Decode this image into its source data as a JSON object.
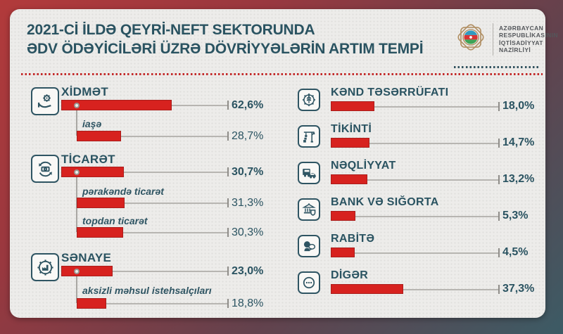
{
  "header": {
    "title_line1": "2021-Cİ İLDƏ QEYRİ-NEFT SEKTORUNDA",
    "title_line2": "ƏDV ÖDƏYİCİLƏRİ ÜZRƏ DÖVRİYYƏLƏRİN ARTIM TEMPİ",
    "ministry": {
      "line1": "AZƏRBAYCAN",
      "line2": "RESPUBLİKASININ",
      "line3": "İQTİSADİYYAT",
      "line4": "NAZİRLİYİ"
    }
  },
  "colors": {
    "bar_red": "#d7221f",
    "teal_text": "#2a5361",
    "frame_red": "#b23a3b",
    "frame_teal": "#3c5b65",
    "emblem_gold": "#b19065",
    "track_gray": "#b7b5b1",
    "card_bg": "#edecea"
  },
  "chart_data": {
    "type": "bar",
    "title": "2021-ci ildə qeyri-neft sektorunda ƏDV ödəyiciləri üzrə dövriyyələrin artım tempi",
    "unit": "%",
    "value_format": "comma-decimal",
    "orientation": "horizontal",
    "left_column": [
      {
        "label": "XİDMƏT",
        "icon": "service-hand-gear-icon",
        "value": 62.6,
        "display": "62,6%",
        "children": [
          {
            "label": "iaşə",
            "value": 28.7,
            "display": "28,7%"
          }
        ]
      },
      {
        "label": "TİCARƏT",
        "icon": "trade-cycle-icon",
        "value": 30.7,
        "display": "30,7%",
        "children": [
          {
            "label": "pərakəndə ticarət",
            "value": 31.3,
            "display": "31,3%"
          },
          {
            "label": "topdan ticarət",
            "value": 30.3,
            "display": "30,3%"
          }
        ]
      },
      {
        "label": "SƏNAYE",
        "icon": "industry-gear-icon",
        "value": 23.0,
        "display": "23,0%",
        "children": [
          {
            "label": "aksizli məhsul istehsalçıları",
            "value": 18.8,
            "display": "18,8%"
          }
        ]
      }
    ],
    "right_column": [
      {
        "label": "KƏND TƏSƏRRÜFATI",
        "icon": "agriculture-gear-icon",
        "value": 18.0,
        "display": "18,0%"
      },
      {
        "label": "TİKİNTİ",
        "icon": "construction-crane-icon",
        "value": 14.7,
        "display": "14,7%"
      },
      {
        "label": "NƏQLİYYAT",
        "icon": "transport-vehicles-icon",
        "value": 13.2,
        "display": "13,2%"
      },
      {
        "label": "BANK VƏ SIĞORTA",
        "icon": "bank-shield-icon",
        "value": 5.3,
        "display": "5,3%"
      },
      {
        "label": "RABİTƏ",
        "icon": "communication-chat-icon",
        "value": 4.5,
        "display": "4,5%"
      },
      {
        "label": "DİGƏR",
        "icon": "other-ellipsis-icon",
        "value": 37.3,
        "display": "37,3%"
      }
    ]
  }
}
